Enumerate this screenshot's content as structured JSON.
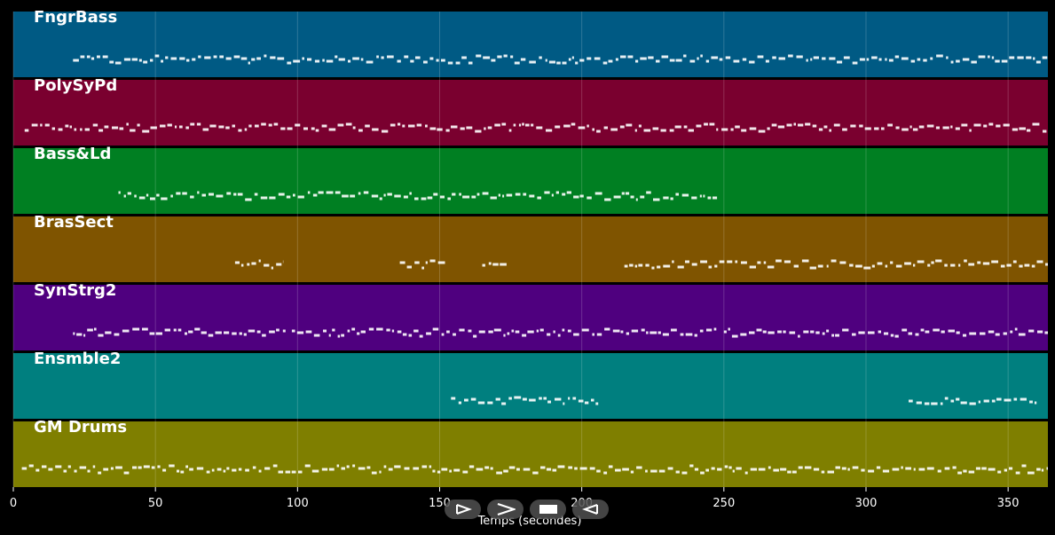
{
  "chart_data": {
    "type": "piano-roll",
    "xlabel": "Temps (secondes)",
    "xlim": [
      0,
      364
    ],
    "xticks": [
      0,
      50,
      100,
      150,
      200,
      250,
      300,
      350
    ],
    "grid": true,
    "tracks": [
      {
        "name": "FngrBass",
        "color": "#005a84",
        "segments": [
          [
            21,
            364
          ]
        ]
      },
      {
        "name": "PolySyPd",
        "color": "#7a002f",
        "segments": [
          [
            4,
            364
          ]
        ]
      },
      {
        "name": "Bass&Ld",
        "color": "#007f22",
        "segments": [
          [
            37,
            248
          ]
        ]
      },
      {
        "name": "BrasSect",
        "color": "#7f5400",
        "segments": [
          [
            78,
            95
          ],
          [
            136,
            152
          ],
          [
            165,
            174
          ],
          [
            215,
            364
          ]
        ]
      },
      {
        "name": "SynStrg2",
        "color": "#4f007f",
        "segments": [
          [
            21,
            96
          ],
          [
            98,
            248
          ],
          [
            250,
            364
          ]
        ]
      },
      {
        "name": "Ensmble2",
        "color": "#007f7f",
        "segments": [
          [
            154,
            206
          ],
          [
            315,
            360
          ]
        ]
      },
      {
        "name": "GM Drums",
        "color": "#7f7f00",
        "segments": [
          [
            3,
            364
          ]
        ]
      }
    ]
  },
  "controls": [
    {
      "name": "rewind",
      "icon": "rewind-icon"
    },
    {
      "name": "play",
      "icon": "play-icon"
    },
    {
      "name": "stop",
      "icon": "stop-icon"
    },
    {
      "name": "forward",
      "icon": "forward-icon"
    }
  ]
}
